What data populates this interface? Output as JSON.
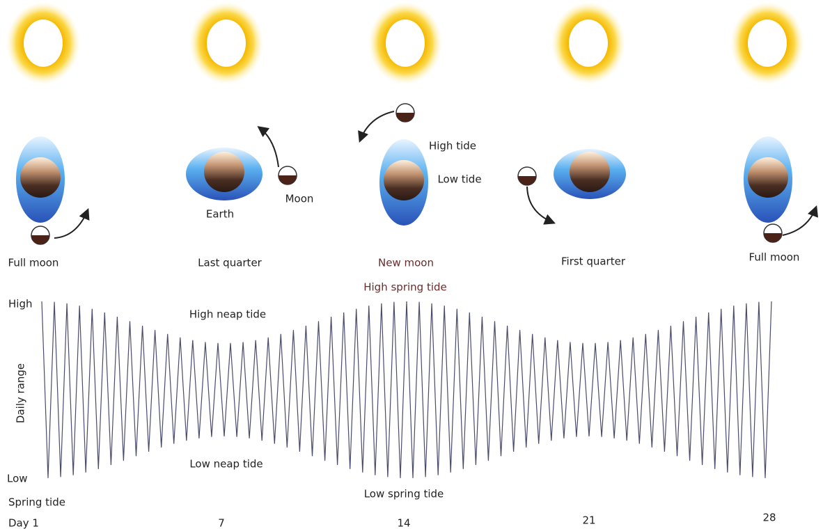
{
  "phases": [
    {
      "label": "Full moon"
    },
    {
      "label": "Last quarter"
    },
    {
      "label": "New moon"
    },
    {
      "label": "First quarter"
    },
    {
      "label": "Full moon"
    }
  ],
  "annotations": {
    "earth": "Earth",
    "moon": "Moon",
    "high_tide": "High tide",
    "low_tide": "Low tide"
  },
  "tide_graph": {
    "y_axis_label": "Daily range",
    "y_high": "High",
    "y_low": "Low",
    "high_neap": "High neap tide",
    "low_neap": "Low neap tide",
    "high_spring": "High spring tide",
    "low_spring": "Low spring tide",
    "spring_tide": "Spring tide",
    "days": [
      "Day 1",
      "7",
      "14",
      "21",
      "28"
    ]
  }
}
